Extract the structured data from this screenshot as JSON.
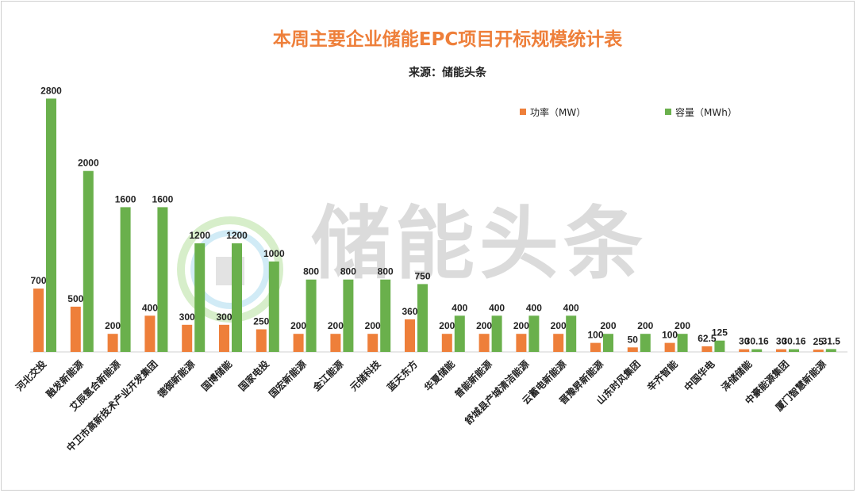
{
  "chart_data": {
    "type": "bar",
    "title": "本周主要企业储能EPC项目开标规模统计表",
    "subtitle": "来源：储能头条",
    "xlabel": "",
    "ylabel": "",
    "ylim": [
      0,
      2900
    ],
    "grid": false,
    "legend_position": "top-right",
    "categories": [
      "河北交投",
      "融发新能源",
      "艾辰氢合新能源",
      "中卫市高新技术产业开发集团",
      "德御新能源",
      "国博储能",
      "国家电投",
      "国宏新能源",
      "金江能源",
      "元储科技",
      "蓝天东方",
      "华夏储能",
      "普能新能源",
      "舒城县产城清洁能源",
      "云蓄电新能源",
      "晋豫昇新能源",
      "山东时风集团",
      "辛齐智能",
      "中国华电",
      "泽储储能",
      "中豪能源集团",
      "厦门智慧新能源"
    ],
    "series": [
      {
        "name": "功率（MW）",
        "color": "#ee7f3a",
        "values": [
          700,
          500,
          200,
          400,
          300,
          300,
          250,
          200,
          200,
          200,
          360,
          200,
          200,
          200,
          200,
          100,
          50,
          100,
          62.5,
          30,
          30,
          25
        ],
        "labels": [
          "700",
          "500",
          "200",
          "400",
          "300",
          "300",
          "250",
          "200",
          "200",
          "200",
          "360",
          "200",
          "200",
          "200",
          "200",
          "100",
          "50",
          "100",
          "62.5",
          "30",
          "30",
          "25"
        ]
      },
      {
        "name": "容量（MWh）",
        "color": "#6ab04c",
        "values": [
          2800,
          2000,
          1600,
          1600,
          1200,
          1200,
          1000,
          800,
          800,
          800,
          750,
          400,
          400,
          400,
          400,
          200,
          200,
          200,
          125,
          30.16,
          30.16,
          31.5
        ],
        "labels": [
          "2800",
          "2000",
          "1600",
          "1600",
          "1200",
          "1200",
          "1000",
          "800",
          "800",
          "800",
          "750",
          "400",
          "400",
          "400",
          "400",
          "200",
          "200",
          "200",
          "125",
          "30.16",
          "30.16",
          "31.5"
        ]
      }
    ]
  },
  "watermark": {
    "text": "储能头条",
    "icon": "logo-ring-icon"
  }
}
